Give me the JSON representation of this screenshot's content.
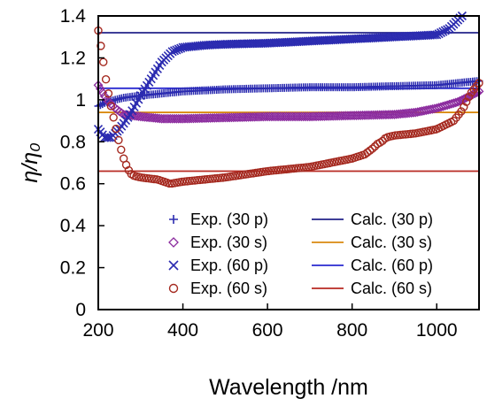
{
  "chart_data": {
    "type": "scatter",
    "title": "",
    "xlabel": "Wavelength /nm",
    "ylabel": "η/η₀",
    "xlim": [
      200,
      1100
    ],
    "ylim": [
      0,
      1.4
    ],
    "x_ticks": [
      200,
      400,
      600,
      800,
      1000
    ],
    "y_ticks": [
      0,
      0.2,
      0.4,
      0.6,
      0.8,
      1,
      1.2,
      1.4
    ],
    "x_tick_labels": [
      "200",
      "400",
      "600",
      "800",
      "1000"
    ],
    "y_tick_labels": [
      "0",
      "0.2",
      "0.4",
      "0.6",
      "0.8",
      "1",
      "1.2",
      "1.4"
    ],
    "grid": false,
    "legend_position": "bottom-right, two columns",
    "exp_series": [
      {
        "name": "Exp. (30 p)",
        "marker": "plus",
        "color": "#2b2bb0",
        "x": [
          200,
          220,
          240,
          260,
          300,
          350,
          400,
          500,
          600,
          700,
          800,
          900,
          1000,
          1100
        ],
        "y": [
          0.97,
          0.99,
          1.0,
          1.01,
          1.02,
          1.03,
          1.04,
          1.05,
          1.055,
          1.06,
          1.06,
          1.065,
          1.07,
          1.09
        ]
      },
      {
        "name": "Exp. (30 s)",
        "marker": "diamond",
        "color": "#8b2b9e",
        "x": [
          200,
          220,
          240,
          260,
          300,
          350,
          400,
          500,
          600,
          700,
          800,
          900,
          950,
          1000,
          1050,
          1100
        ],
        "y": [
          1.07,
          1.0,
          0.96,
          0.93,
          0.92,
          0.91,
          0.91,
          0.915,
          0.92,
          0.92,
          0.925,
          0.93,
          0.94,
          0.96,
          0.99,
          1.04
        ]
      },
      {
        "name": "Exp. (60 p)",
        "marker": "x",
        "color": "#2b2bb0",
        "x": [
          200,
          215,
          230,
          250,
          275,
          300,
          325,
          350,
          375,
          400,
          450,
          500,
          600,
          700,
          800,
          900,
          950,
          1000,
          1030,
          1060
        ],
        "y": [
          0.86,
          0.82,
          0.82,
          0.86,
          0.93,
          1.02,
          1.1,
          1.18,
          1.23,
          1.25,
          1.26,
          1.265,
          1.27,
          1.28,
          1.29,
          1.3,
          1.305,
          1.31,
          1.34,
          1.4
        ]
      },
      {
        "name": "Exp. (60 s)",
        "marker": "circle",
        "color": "#a52a20",
        "x": [
          200,
          205,
          212,
          220,
          230,
          240,
          250,
          260,
          270,
          280,
          300,
          340,
          370,
          400,
          450,
          500,
          550,
          600,
          650,
          700,
          750,
          800,
          830,
          850,
          860,
          870,
          880,
          900,
          950,
          1000,
          1020,
          1040,
          1060,
          1080,
          1100
        ],
        "y": [
          1.33,
          1.27,
          1.18,
          1.07,
          0.97,
          0.88,
          0.79,
          0.72,
          0.67,
          0.64,
          0.63,
          0.62,
          0.6,
          0.61,
          0.62,
          0.63,
          0.645,
          0.66,
          0.67,
          0.68,
          0.7,
          0.72,
          0.74,
          0.77,
          0.79,
          0.8,
          0.82,
          0.83,
          0.84,
          0.86,
          0.88,
          0.9,
          0.95,
          1.03,
          1.08
        ]
      }
    ],
    "calc_series": [
      {
        "name": "Calc. (30 p)",
        "color": "#22228a",
        "x": [
          200,
          1100
        ],
        "y": [
          1.32,
          1.32
        ]
      },
      {
        "name": "Calc. (30 s)",
        "color": "#d98a10",
        "x": [
          200,
          1100
        ],
        "y": [
          0.94,
          0.94
        ]
      },
      {
        "name": "Calc. (60 p)",
        "color": "#2a2ad0",
        "x": [
          200,
          1100
        ],
        "y": [
          1.055,
          1.055
        ]
      },
      {
        "name": "Calc. (60 s)",
        "color": "#b82a22",
        "x": [
          200,
          1100
        ],
        "y": [
          0.66,
          0.66
        ]
      }
    ]
  }
}
